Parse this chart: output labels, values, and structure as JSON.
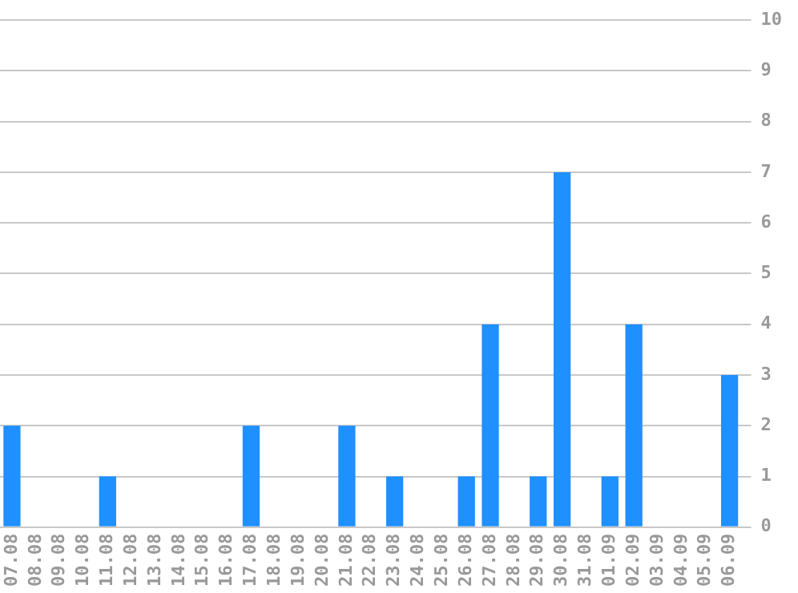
{
  "chart_data": {
    "type": "bar",
    "categories": [
      "07.08",
      "08.08",
      "09.08",
      "10.08",
      "11.08",
      "12.08",
      "13.08",
      "14.08",
      "15.08",
      "16.08",
      "17.08",
      "18.08",
      "19.08",
      "20.08",
      "21.08",
      "22.08",
      "23.08",
      "24.08",
      "25.08",
      "26.08",
      "27.08",
      "28.08",
      "29.08",
      "30.08",
      "31.08",
      "01.09",
      "02.09",
      "03.09",
      "04.09",
      "05.09",
      "06.09"
    ],
    "values": [
      2,
      0,
      0,
      0,
      1,
      0,
      0,
      0,
      0,
      0,
      2,
      0,
      0,
      0,
      2,
      0,
      1,
      0,
      0,
      1,
      4,
      0,
      1,
      7,
      0,
      1,
      4,
      0,
      0,
      0,
      3
    ],
    "color": "#1e90ff",
    "ylim": [
      0,
      10
    ],
    "yticks": [
      0,
      1,
      2,
      3,
      4,
      5,
      6,
      7,
      8,
      9,
      10
    ],
    "grid": "y",
    "legend": false
  }
}
